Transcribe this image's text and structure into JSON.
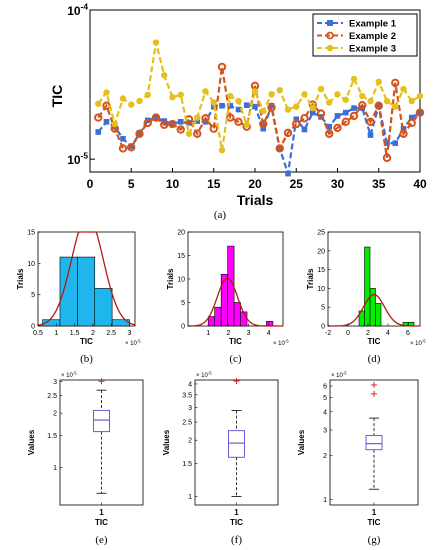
{
  "colors": {
    "example1": "#3a6fd8",
    "example2": "#d4541c",
    "example3": "#e3c01a",
    "hist_b": "#1fb6ee",
    "hist_c": "#ff00ff",
    "hist_d": "#00ee00",
    "fit_curve": "#b21a10",
    "box": "#6b5bd6",
    "outlier": "#e02020"
  },
  "chart_data": [
    {
      "id": "a",
      "type": "line",
      "caption": "(a)",
      "xlabel": "Trials",
      "ylabel": "TIC",
      "xlim": [
        0,
        40
      ],
      "xticks": [
        0,
        5,
        10,
        15,
        20,
        25,
        30,
        35,
        40
      ],
      "yscale": "log",
      "ylim": [
        8.2e-06,
        0.0001
      ],
      "yticks": [
        {
          "value": 1e-05,
          "base": "10",
          "exp": "-5"
        },
        {
          "value": 0.0001,
          "base": "10",
          "exp": "-4"
        }
      ],
      "legend_position": "top-right",
      "x": [
        1,
        2,
        3,
        4,
        5,
        6,
        7,
        8,
        9,
        10,
        11,
        12,
        13,
        14,
        15,
        16,
        17,
        18,
        19,
        20,
        21,
        22,
        23,
        24,
        25,
        26,
        27,
        28,
        29,
        30,
        31,
        32,
        33,
        34,
        35,
        36,
        37,
        38,
        39,
        40
      ],
      "series": [
        {
          "name": "Example 1",
          "marker": "square",
          "color_key": "example1",
          "values": [
            1.52e-05,
            1.78e-05,
            1.65e-05,
            1.37e-05,
            1.22e-05,
            1.48e-05,
            1.82e-05,
            1.9e-05,
            1.8e-05,
            1.73e-05,
            1.78e-05,
            1.75e-05,
            1.8e-05,
            1.78e-05,
            2.25e-05,
            2.28e-05,
            2.28e-05,
            2.15e-05,
            2.3e-05,
            2.25e-05,
            1.6e-05,
            2.28e-05,
            1.18e-05,
            8e-06,
            1.85e-05,
            1.58e-05,
            2.05e-05,
            1.92e-05,
            1.65e-05,
            1.95e-05,
            2.05e-05,
            2.2e-05,
            2.2e-05,
            1.45e-05,
            2.28e-05,
            1.28e-05,
            1.28e-05,
            1.6e-05,
            1.9e-05,
            2.05e-05
          ]
        },
        {
          "name": "Example 2",
          "marker": "circle",
          "color_key": "example2",
          "values": [
            1.9e-05,
            2.28e-05,
            1.6e-05,
            1.18e-05,
            1.2e-05,
            1.48e-05,
            1.75e-05,
            1.9e-05,
            1.7e-05,
            1.72e-05,
            1.58e-05,
            1.85e-05,
            1.48e-05,
            1.88e-05,
            1.6e-05,
            4.15e-05,
            1.9e-05,
            1.78e-05,
            1.65e-05,
            3.1e-05,
            1.72e-05,
            2.22e-05,
            1.18e-05,
            1.5e-05,
            1.72e-05,
            1.88e-05,
            2.32e-05,
            2.02e-05,
            1.48e-05,
            1.62e-05,
            1.78e-05,
            1.95e-05,
            2.3e-05,
            1.78e-05,
            2.28e-05,
            1.02e-05,
            3.25e-05,
            1.48e-05,
            1.75e-05,
            2.05e-05
          ]
        },
        {
          "name": "Example 3",
          "marker": "circle-filled",
          "color_key": "example3",
          "values": [
            2.35e-05,
            2.8e-05,
            1.72e-05,
            2.55e-05,
            2.32e-05,
            2.45e-05,
            2.7e-05,
            6.05e-05,
            3.65e-05,
            2.6e-05,
            2.7e-05,
            1.48e-05,
            1.9e-05,
            2.85e-05,
            2.4e-05,
            1.15e-05,
            2.65e-05,
            2.45e-05,
            1.7e-05,
            2.85e-05,
            2.1e-05,
            2.72e-05,
            2.9e-05,
            2.15e-05,
            2.25e-05,
            2.72e-05,
            2.2e-05,
            2.95e-05,
            2.4e-05,
            2.72e-05,
            2.5e-05,
            3.45e-05,
            2.65e-05,
            2.45e-05,
            3.3e-05,
            2.45e-05,
            2.25e-05,
            2.95e-05,
            2.45e-05,
            2.65e-05
          ]
        }
      ]
    },
    {
      "id": "b",
      "type": "bar",
      "caption": "(b)",
      "xlabel": "TIC",
      "ylabel": "Trials",
      "x_multiplier": {
        "base": "× 10",
        "exp": "-5"
      },
      "xlim": [
        0.5,
        3.15
      ],
      "ylim": [
        0,
        15
      ],
      "xticks": [
        0.5,
        1,
        1.5,
        2,
        2.5,
        3
      ],
      "yticks": [
        0,
        5,
        10,
        15
      ],
      "bin_edges": [
        0.625,
        1.1,
        1.575,
        2.05,
        2.525,
        3.0
      ],
      "values": [
        1,
        11,
        11,
        6,
        1
      ],
      "fit_curve": {
        "mean": 1.85,
        "std": 0.43,
        "n": 40,
        "bin_width": 0.475
      },
      "color_key": "hist_b"
    },
    {
      "id": "c",
      "type": "bar",
      "caption": "(c)",
      "xlabel": "TIC",
      "ylabel": "Trials",
      "x_multiplier": {
        "base": "× 10",
        "exp": "-5"
      },
      "xlim": [
        0,
        4.7
      ],
      "ylim": [
        0,
        20
      ],
      "xticks": [
        1,
        2,
        3,
        4
      ],
      "yticks": [
        0,
        5,
        10,
        15,
        20
      ],
      "bin_edges": [
        1.0,
        1.32,
        1.64,
        1.96,
        2.28,
        2.6,
        2.92,
        3.24,
        3.56,
        3.88,
        4.2
      ],
      "values": [
        2,
        4,
        11,
        17,
        5,
        3,
        0,
        0,
        0,
        1
      ],
      "fit_curve": {
        "mean": 1.95,
        "std": 0.5,
        "n": 40,
        "bin_width": 0.32
      },
      "color_key": "hist_c"
    },
    {
      "id": "d",
      "type": "bar",
      "caption": "(d)",
      "xlabel": "TIC",
      "ylabel": "Trials",
      "x_multiplier": {
        "base": "× 10",
        "exp": "-5"
      },
      "xlim": [
        -2,
        7.2
      ],
      "ylim": [
        0,
        25
      ],
      "xticks": [
        -2,
        0,
        2,
        4,
        6
      ],
      "yticks": [
        0,
        5,
        10,
        15,
        20,
        25
      ],
      "bin_edges": [
        1.1,
        1.65,
        2.2,
        2.75,
        3.3,
        3.85,
        4.4,
        4.95,
        5.5,
        6.05,
        6.6
      ],
      "values": [
        4,
        21,
        10,
        6,
        0,
        0,
        0,
        0,
        1,
        1
      ],
      "fit_curve": {
        "mean": 2.6,
        "std": 1.05,
        "n": 40,
        "bin_width": 0.55
      },
      "color_key": "hist_d"
    },
    {
      "id": "e",
      "type": "box",
      "caption": "(e)",
      "ylabel": "Values",
      "category_tick": "1",
      "xlabel": "TIC",
      "y_multiplier": {
        "base": "× 10",
        "exp": "-5"
      },
      "yscale": "log",
      "ylim": [
        0.62,
        3.05
      ],
      "yticks": [
        1,
        1.5,
        2,
        2.5,
        3
      ],
      "box": {
        "min": 0.72,
        "q1": 1.58,
        "median": 1.83,
        "q3": 2.07,
        "max": 2.68
      },
      "outliers": [
        3.0
      ]
    },
    {
      "id": "f",
      "type": "box",
      "caption": "(f)",
      "ylabel": "Values",
      "category_tick": "1",
      "xlabel": "TIC",
      "y_multiplier": {
        "base": "× 10",
        "exp": "-5"
      },
      "yscale": "log",
      "ylim": [
        0.9,
        4.2
      ],
      "yticks": [
        1,
        1.5,
        2,
        2.5,
        3,
        3.5,
        4
      ],
      "box": {
        "min": 1.0,
        "q1": 1.62,
        "median": 1.93,
        "q3": 2.25,
        "max": 2.88
      },
      "outliers": [
        4.15
      ]
    },
    {
      "id": "g",
      "type": "box",
      "caption": "(g)",
      "ylabel": "Values",
      "category_tick": "1",
      "xlabel": "TIC",
      "y_multiplier": {
        "base": "× 10",
        "exp": "-5"
      },
      "yscale": "log",
      "ylim": [
        0.92,
        6.6
      ],
      "yticks": [
        1,
        2,
        3,
        4,
        5,
        6
      ],
      "box": {
        "min": 1.18,
        "q1": 2.2,
        "median": 2.42,
        "q3": 2.75,
        "max": 3.62
      },
      "outliers": [
        5.3,
        6.1
      ]
    }
  ]
}
